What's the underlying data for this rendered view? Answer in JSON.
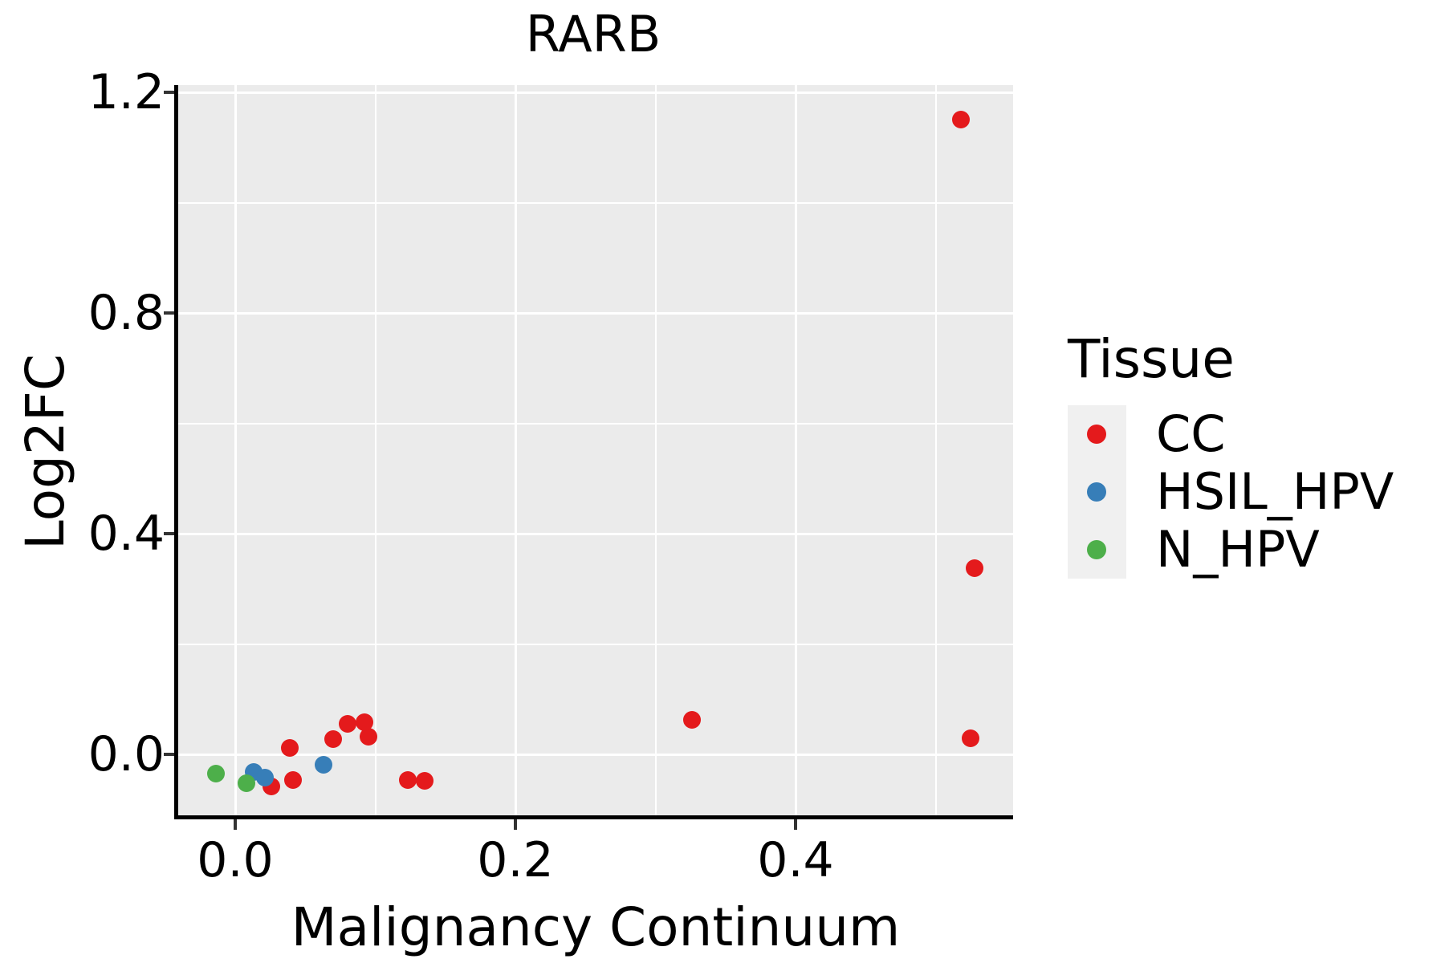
{
  "title": "RARB",
  "chart_data": {
    "type": "scatter",
    "title": "RARB",
    "xlabel": "Malignancy Continuum",
    "ylabel": "Log2FC",
    "xlim": [
      -0.041,
      0.555
    ],
    "ylim": [
      -0.118,
      1.213
    ],
    "grid": true,
    "panel_background": "#EBEBEB",
    "gridline_color": "#FFFFFF",
    "x_major_ticks": [
      0.0,
      0.2,
      0.4
    ],
    "x_tick_labels": [
      "0.0",
      "0.2",
      "0.4"
    ],
    "x_minor_gridlines": [
      0.1,
      0.3,
      0.5
    ],
    "y_major_ticks": [
      0.0,
      0.4,
      0.8,
      1.2
    ],
    "y_tick_labels": [
      "0.0",
      "0.4",
      "0.8",
      "1.2"
    ],
    "y_minor_gridlines": [
      0.2,
      0.6,
      1.0
    ],
    "legend": {
      "title": "Tissue",
      "position": "right"
    },
    "series": [
      {
        "name": "CC",
        "color": "#E41A1C",
        "points": [
          [
            0.026,
            -0.058
          ],
          [
            0.039,
            0.012
          ],
          [
            0.041,
            -0.047
          ],
          [
            0.07,
            0.028
          ],
          [
            0.08,
            0.055
          ],
          [
            0.095,
            0.032
          ],
          [
            0.092,
            0.058
          ],
          [
            0.123,
            -0.047
          ],
          [
            0.135,
            -0.048
          ],
          [
            0.326,
            0.063
          ],
          [
            0.518,
            1.15
          ],
          [
            0.528,
            0.337
          ],
          [
            0.525,
            0.029
          ]
        ]
      },
      {
        "name": "HSIL_HPV",
        "color": "#377EB8",
        "points": [
          [
            0.013,
            -0.032
          ],
          [
            0.021,
            -0.042
          ],
          [
            0.063,
            -0.019
          ]
        ]
      },
      {
        "name": "N_HPV",
        "color": "#4DAF4A",
        "points": [
          [
            -0.014,
            -0.035
          ],
          [
            0.008,
            -0.052
          ]
        ]
      }
    ]
  }
}
